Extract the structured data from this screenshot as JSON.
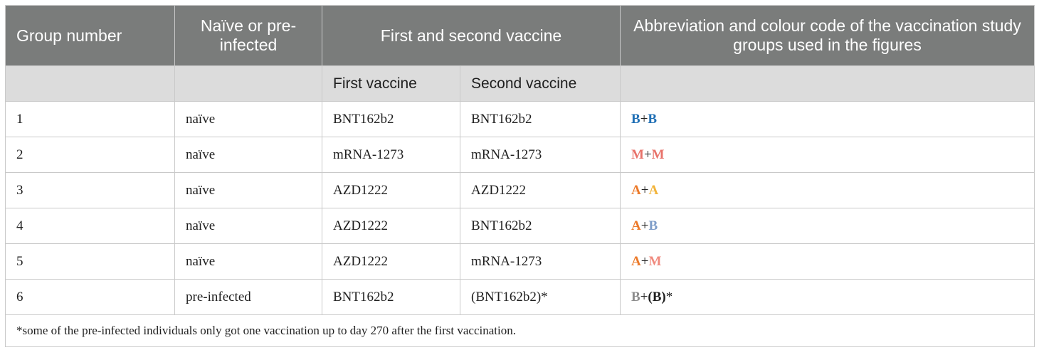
{
  "headers": {
    "group_number": "Group number",
    "naive_or_preinfected": "Naïve or pre-infected",
    "first_and_second": "First and second vaccine",
    "abbreviation": "Abbreviation and colour code of the vaccination study groups used in the figures"
  },
  "subheaders": {
    "first_vaccine": "First vaccine",
    "second_vaccine": "Second vaccine"
  },
  "rows": [
    {
      "group": "1",
      "status": "naïve",
      "first": "BNT162b2",
      "second": "BNT162b2",
      "abbr": {
        "a": "B",
        "a_color": "#1f6fb5",
        "plus": "+",
        "b": "B",
        "b_color": "#1f6fb5",
        "suffix": ""
      }
    },
    {
      "group": "2",
      "status": "naïve",
      "first": "mRNA-1273",
      "second": "mRNA-1273",
      "abbr": {
        "a": "M",
        "a_color": "#e8726a",
        "plus": "+",
        "b": "M",
        "b_color": "#e8726a",
        "suffix": ""
      }
    },
    {
      "group": "3",
      "status": "naïve",
      "first": "AZD1222",
      "second": "AZD1222",
      "abbr": {
        "a": "A",
        "a_color": "#ec7a2a",
        "plus": "+",
        "b": "A",
        "b_color": "#f2b43a",
        "suffix": ""
      }
    },
    {
      "group": "4",
      "status": "naïve",
      "first": "AZD1222",
      "second": "BNT162b2",
      "abbr": {
        "a": "A",
        "a_color": "#ec7a2a",
        "plus": "+",
        "b": "B",
        "b_color": "#7d9cc8",
        "suffix": ""
      }
    },
    {
      "group": "5",
      "status": "naïve",
      "first": "AZD1222",
      "second": "mRNA-1273",
      "abbr": {
        "a": "A",
        "a_color": "#ec7a2a",
        "plus": "+",
        "b": "M",
        "b_color": "#f08a7e",
        "suffix": ""
      }
    },
    {
      "group": "6",
      "status": "pre-infected",
      "first": "BNT162b2",
      "second": "(BNT162b2)*",
      "abbr": {
        "a": "B",
        "a_color": "#8c8c8c",
        "plus": "+",
        "b": "(B)",
        "b_color": "#1f1f1f",
        "suffix": "*"
      }
    }
  ],
  "footnote": "*some of the pre-infected individuals only got one vaccination up to day 270 after the first vaccination."
}
